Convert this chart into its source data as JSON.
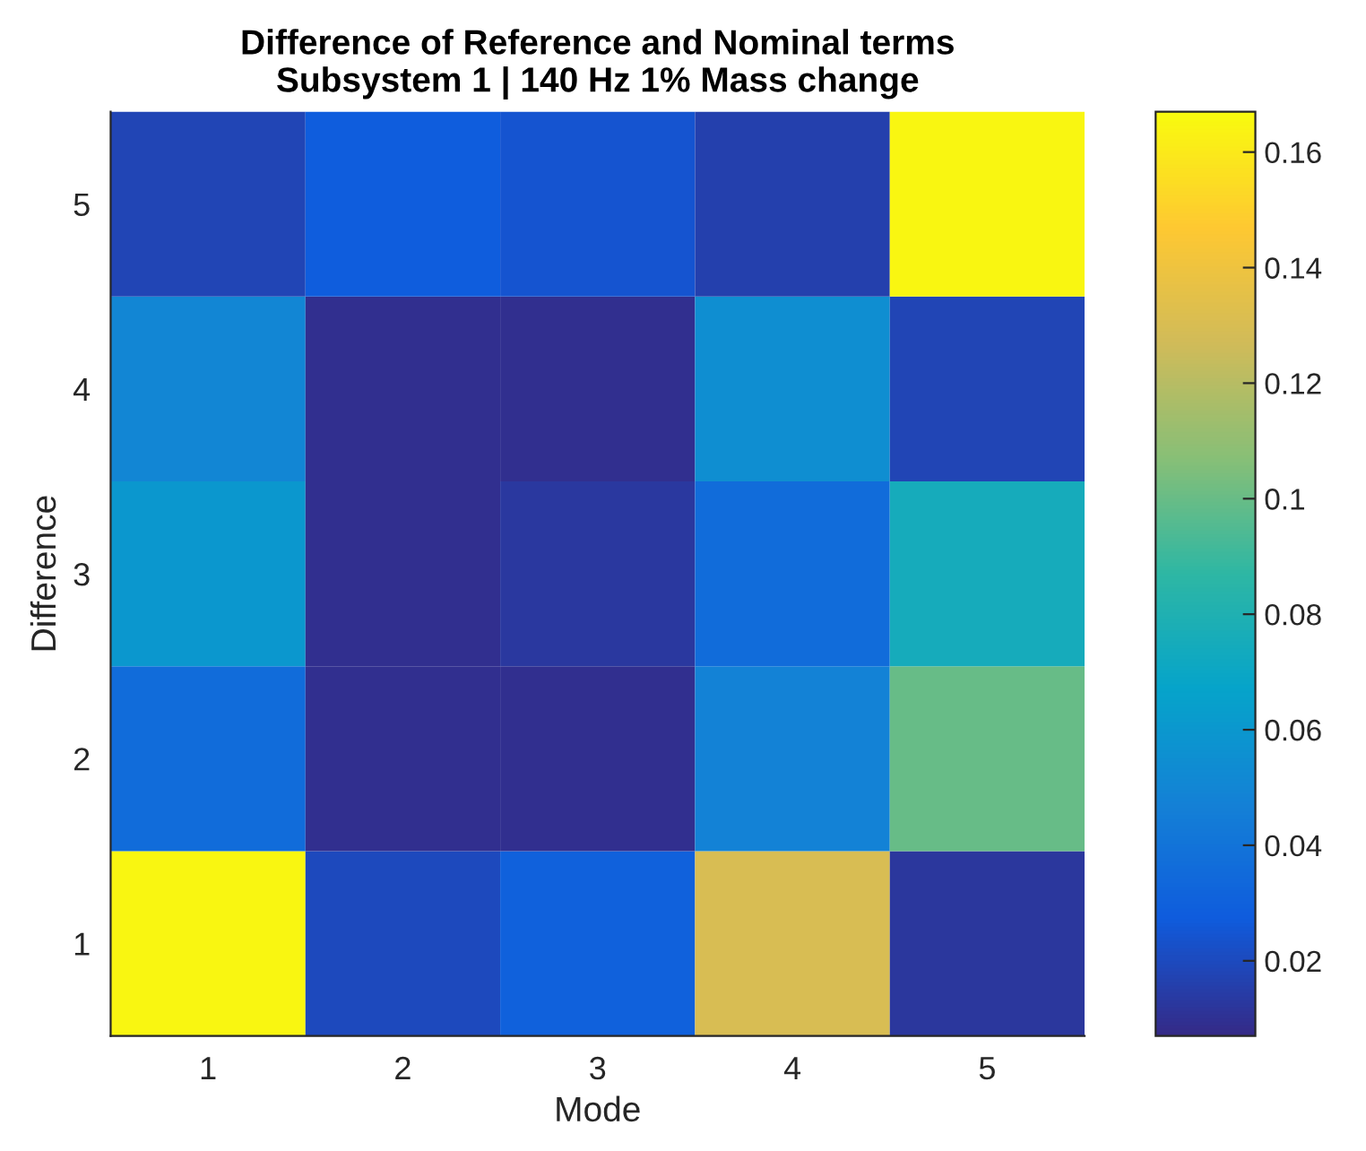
{
  "chart_data": {
    "type": "heatmap",
    "title": "Difference of Reference and Nominal terms\nSubsystem 1 | 140 Hz 1% Mass change",
    "xlabel": "Mode",
    "ylabel": "Difference",
    "categories": [
      "1",
      "2",
      "3",
      "4",
      "5"
    ],
    "y_categories": [
      "5",
      "4",
      "3",
      "2",
      "1"
    ],
    "cells": [
      [
        0.018,
        0.028,
        0.024,
        0.016,
        0.165
      ],
      [
        0.05,
        0.009,
        0.009,
        0.055,
        0.018
      ],
      [
        0.06,
        0.009,
        0.013,
        0.036,
        0.075
      ],
      [
        0.036,
        0.009,
        0.009,
        0.048,
        0.1
      ],
      [
        0.165,
        0.02,
        0.03,
        0.13,
        0.012
      ]
    ],
    "clim": [
      0.007,
      0.167
    ],
    "cticks": [
      0.02,
      0.04,
      0.06,
      0.08,
      0.1,
      0.12,
      0.14,
      0.16
    ],
    "grid": false
  }
}
